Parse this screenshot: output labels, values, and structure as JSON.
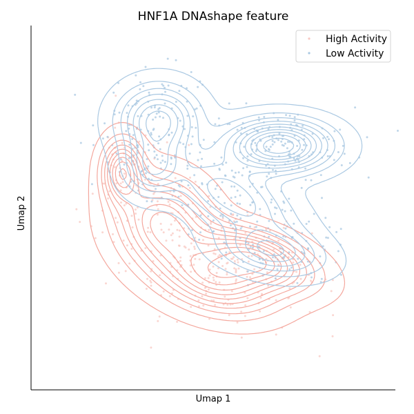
{
  "chart_data": {
    "type": "scatter",
    "title": "HNF1A DNAshape feature",
    "xlabel": "Umap 1",
    "ylabel": "Umap 2",
    "xlim": [
      0,
      10
    ],
    "ylim": [
      0,
      10
    ],
    "grid": false,
    "legend": "top-right",
    "xticks": [],
    "yticks": [],
    "series": [
      {
        "name": "High Activity",
        "color": "#f4a79d",
        "point_color": "#f8c8c2",
        "cloud": [
          {
            "cx": 3.6,
            "cy": 4.6,
            "sx": 0.85,
            "sy": 0.75,
            "rot": -35,
            "n": 130
          },
          {
            "cx": 5.1,
            "cy": 3.1,
            "sx": 1.05,
            "sy": 0.6,
            "rot": -15,
            "n": 140
          },
          {
            "cx": 6.3,
            "cy": 3.6,
            "sx": 1.0,
            "sy": 0.45,
            "rot": -20,
            "n": 90
          },
          {
            "cx": 2.5,
            "cy": 6.0,
            "sx": 0.35,
            "sy": 0.55,
            "rot": 0,
            "n": 40
          }
        ],
        "levels": 10
      },
      {
        "name": "Low Activity",
        "color": "#a9c8e2",
        "point_color": "#a9c8e2",
        "cloud": [
          {
            "cx": 3.5,
            "cy": 7.4,
            "sx": 0.7,
            "sy": 0.6,
            "rot": 0,
            "n": 110
          },
          {
            "cx": 6.8,
            "cy": 6.7,
            "sx": 0.9,
            "sy": 0.45,
            "rot": 0,
            "n": 160
          },
          {
            "cx": 5.5,
            "cy": 5.3,
            "sx": 1.2,
            "sy": 0.55,
            "rot": -28,
            "n": 130
          },
          {
            "cx": 6.6,
            "cy": 3.8,
            "sx": 0.9,
            "sy": 0.4,
            "rot": -10,
            "n": 70
          },
          {
            "cx": 3.3,
            "cy": 6.1,
            "sx": 0.5,
            "sy": 0.5,
            "rot": 0,
            "n": 45
          }
        ],
        "levels": 10
      }
    ]
  }
}
